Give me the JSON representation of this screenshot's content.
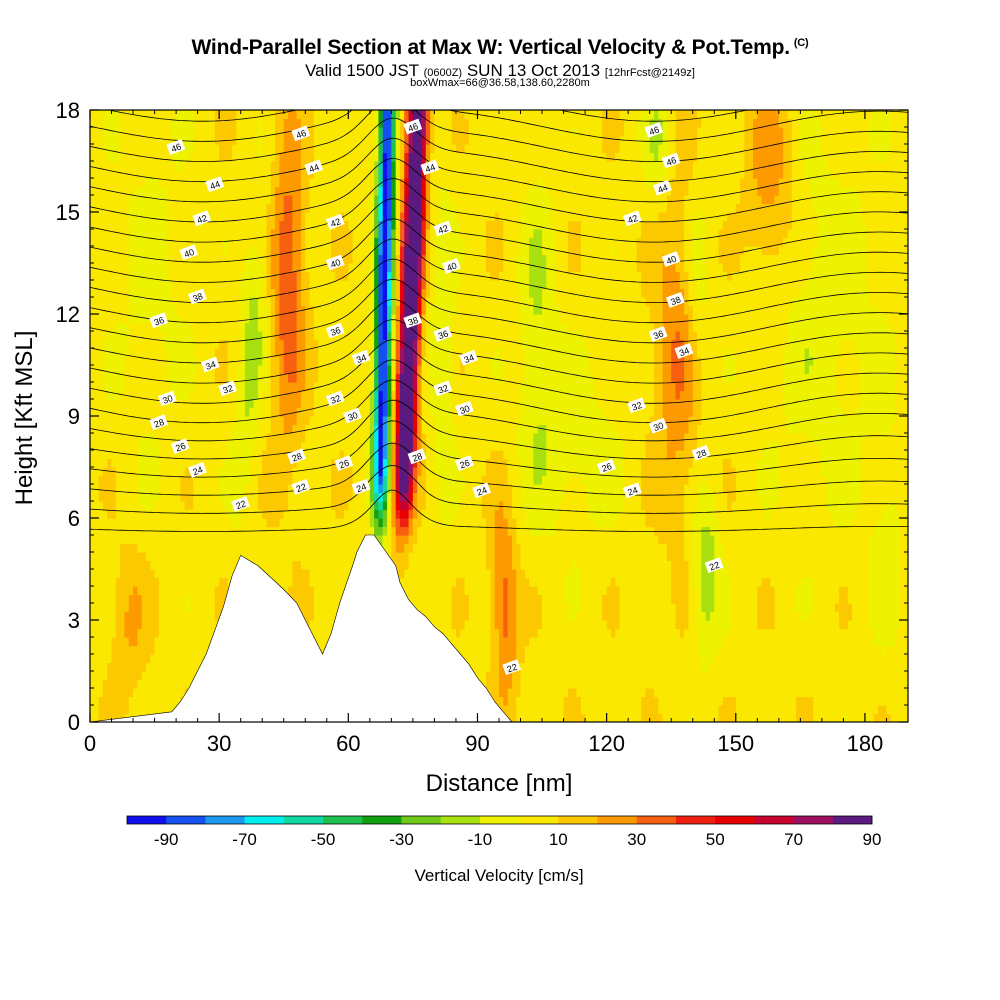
{
  "chart_data": {
    "type": "heatmap",
    "title": "Wind-Parallel Section at Max W: Vertical Velocity & Pot.Temp.",
    "copyright": "(C)",
    "subtitle": {
      "valid": "Valid 1500 JST",
      "zulu": "(0600Z)",
      "date": "SUN 13 Oct 2013",
      "forecast": "[12hrFcst@2149z]"
    },
    "box_info": "boxWmax=66@36.58,138.60,2280m",
    "xlabel": "Distance [nm]",
    "ylabel": "Height [Kft MSL]",
    "xlim": [
      0,
      190
    ],
    "ylim": [
      0,
      18
    ],
    "x_ticks": [
      "0",
      "30",
      "60",
      "90",
      "120",
      "150",
      "180"
    ],
    "y_ticks": [
      "0",
      "3",
      "6",
      "9",
      "12",
      "15",
      "18"
    ],
    "colorbar": {
      "label": "Vertical Velocity [cm/s]",
      "tick_labels": [
        "-90",
        "-70",
        "-50",
        "-30",
        "-10",
        "10",
        "30",
        "50",
        "70",
        "90"
      ],
      "colors": [
        "#1010ee",
        "#1550f0",
        "#1c98f0",
        "#00eeee",
        "#10d8a0",
        "#20c050",
        "#12a010",
        "#70c818",
        "#a8e010",
        "#ecf200",
        "#fae800",
        "#fcc800",
        "#fc9a00",
        "#f66010",
        "#f02010",
        "#e80000",
        "#c80030",
        "#a01060",
        "#5a1a80"
      ]
    },
    "contour_field": "Potential temperature",
    "contour_labels": [
      "46",
      "44",
      "42",
      "40",
      "38",
      "36",
      "34",
      "32",
      "30",
      "28",
      "26",
      "24",
      "22"
    ],
    "w_features": [
      {
        "name": "strong updraft column",
        "x_range": [
          70,
          76
        ],
        "z_range": [
          5,
          18
        ],
        "max_w": 90
      },
      {
        "name": "strong downdraft column",
        "x_range": [
          64,
          70
        ],
        "z_range": [
          5,
          18
        ],
        "min_w": -90
      },
      {
        "name": "lee downdraft",
        "x_range": [
          140,
          146
        ],
        "z_range": [
          2,
          8
        ],
        "min_w": -25
      },
      {
        "name": "updraft band",
        "x_range": [
          93,
          100
        ],
        "z_range": [
          2,
          7
        ],
        "max_w": 40
      }
    ],
    "terrain_profile": {
      "x": [
        0,
        19,
        21,
        23,
        25,
        27,
        29,
        31,
        33,
        35,
        39,
        45,
        48,
        50,
        52,
        54,
        56,
        58,
        61,
        62,
        64,
        66,
        71,
        72,
        74,
        76,
        78,
        80,
        82,
        84,
        86,
        88,
        90,
        92,
        94,
        96,
        98,
        190
      ],
      "z": [
        0,
        0.3,
        0.6,
        1.0,
        1.5,
        2.0,
        2.7,
        3.4,
        4.3,
        4.9,
        4.6,
        3.9,
        3.5,
        3.0,
        2.5,
        2.0,
        2.6,
        3.5,
        4.6,
        5.0,
        5.5,
        5.5,
        4.6,
        4.1,
        3.6,
        3.3,
        3.1,
        2.8,
        2.6,
        2.3,
        2.0,
        1.7,
        1.3,
        1.0,
        0.6,
        0.3,
        0,
        0
      ]
    }
  }
}
